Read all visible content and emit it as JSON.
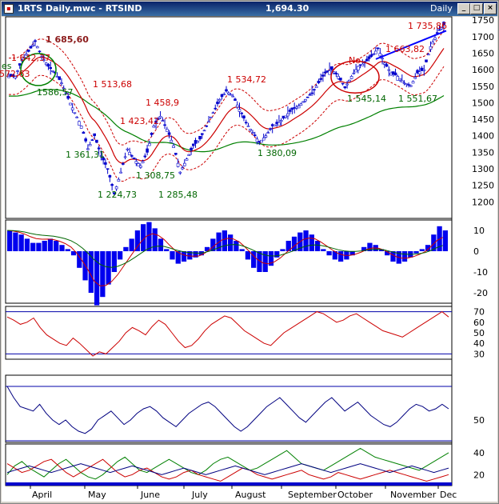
{
  "window": {
    "title": "1RTS Daily.mwc - RTSIND",
    "last_price": "1,694.30",
    "timeframe": "Daily",
    "buttons": [
      "minimize-button",
      "maximize-button",
      "close-button"
    ],
    "button_glyphs": [
      "_",
      "□",
      "×"
    ]
  },
  "colors": {
    "price_bars": "#0000cc",
    "ema_short": "#cc0000",
    "ema_long": "#008000",
    "envelope": "#cc0000",
    "histogram": "#0000ee",
    "trendline": "#0000ff",
    "circle_green": "#008000",
    "circle_red": "#cc0000",
    "text_red": "#cc0000",
    "text_green": "#006600"
  },
  "chart_data": [
    {
      "type": "candlestick",
      "name": "RTSIND",
      "ylim": [
        1150,
        1760
      ],
      "ytick_labels": [
        "1200",
        "1250",
        "1300",
        "1350",
        "1400",
        "1450",
        "1500",
        "1550",
        "1600",
        "1650",
        "1700",
        "1750"
      ],
      "x_labels": [
        "April",
        "May",
        "June",
        "July",
        "August",
        "September",
        "October",
        "November",
        "Dec"
      ],
      "close_series_estimate": [
        1580,
        1580,
        1630,
        1655,
        1685,
        1640,
        1610,
        1590,
        1560,
        1513,
        1470,
        1430,
        1361,
        1400,
        1340,
        1300,
        1224,
        1290,
        1360,
        1330,
        1309,
        1350,
        1430,
        1459,
        1420,
        1370,
        1290,
        1330,
        1370,
        1390,
        1430,
        1470,
        1510,
        1535,
        1520,
        1480,
        1440,
        1410,
        1380,
        1400,
        1430,
        1440,
        1460,
        1480,
        1490,
        1510,
        1530,
        1560,
        1590,
        1600,
        1580,
        1545,
        1580,
        1610,
        1620,
        1640,
        1664,
        1620,
        1590,
        1580,
        1560,
        1552,
        1590,
        1600,
        1670,
        1710,
        1736
      ],
      "annotations": [
        {
          "text": "1 685,60",
          "bold": true
        },
        {
          "text": "1 642,37"
        },
        {
          "text": "1572,63"
        },
        {
          "text": "1586,57"
        },
        {
          "text": "1 513,68"
        },
        {
          "text": "1 458,9"
        },
        {
          "text": "1 423,42"
        },
        {
          "text": "1 361,31"
        },
        {
          "text": "1 308,75"
        },
        {
          "text": "1 224,73"
        },
        {
          "text": "1 285,48"
        },
        {
          "text": "1 534,72"
        },
        {
          "text": "1 380,09"
        },
        {
          "text": "No"
        },
        {
          "text": "1 545,14"
        },
        {
          "text": "1 663,82"
        },
        {
          "text": "1 551,67"
        },
        {
          "text": "1 735,86"
        },
        {
          "text": "es"
        }
      ]
    },
    {
      "type": "bar",
      "name": "histogram",
      "ylim": [
        -25,
        15
      ],
      "ytick_labels": [
        "10",
        "0",
        "-10",
        "-20"
      ],
      "values": [
        10,
        9,
        8,
        6,
        4,
        4,
        5,
        6,
        5,
        3,
        1,
        -2,
        -8,
        -14,
        -20,
        -26,
        -22,
        -16,
        -10,
        -4,
        2,
        6,
        10,
        13,
        14,
        11,
        6,
        1,
        -4,
        -6,
        -5,
        -4,
        -3,
        -2,
        2,
        6,
        9,
        10,
        8,
        5,
        1,
        -4,
        -8,
        -10,
        -10,
        -7,
        -3,
        1,
        5,
        7,
        9,
        10,
        8,
        5,
        1,
        -2,
        -4,
        -5,
        -4,
        -2,
        0,
        2,
        4,
        3,
        1,
        -2,
        -5,
        -6,
        -5,
        -3,
        -1,
        1,
        3,
        8,
        12,
        10
      ]
    },
    {
      "type": "line",
      "name": "oscillator-1",
      "ylim": [
        25,
        75
      ],
      "ytick_labels": [
        "70",
        "60",
        "50",
        "40",
        "30"
      ],
      "reference_lines": [
        70,
        30
      ],
      "values": [
        65,
        62,
        58,
        60,
        64,
        55,
        48,
        44,
        40,
        38,
        45,
        40,
        34,
        28,
        32,
        30,
        36,
        42,
        50,
        55,
        52,
        48,
        56,
        62,
        58,
        50,
        42,
        36,
        38,
        44,
        52,
        58,
        62,
        66,
        64,
        58,
        52,
        48,
        44,
        40,
        38,
        44,
        50,
        54,
        58,
        62,
        66,
        70,
        68,
        64,
        60,
        62,
        66,
        68,
        64,
        60,
        56,
        52,
        50,
        48,
        46,
        50,
        54,
        58,
        62,
        66,
        70,
        65
      ]
    },
    {
      "type": "line",
      "name": "oscillator-2",
      "ytick_labels": [
        "50"
      ],
      "values": [
        80,
        70,
        62,
        60,
        58,
        64,
        56,
        50,
        46,
        50,
        44,
        40,
        38,
        42,
        50,
        54,
        58,
        52,
        46,
        50,
        56,
        60,
        62,
        58,
        52,
        48,
        44,
        50,
        56,
        60,
        64,
        66,
        62,
        56,
        50,
        44,
        40,
        44,
        50,
        56,
        62,
        66,
        70,
        64,
        58,
        52,
        48,
        54,
        60,
        66,
        70,
        64,
        58,
        62,
        66,
        60,
        54,
        50,
        46,
        44,
        48,
        54,
        60,
        64,
        62,
        58,
        60,
        64,
        60
      ]
    },
    {
      "type": "line",
      "name": "directional-index",
      "ytick_labels": [
        "40",
        "20"
      ],
      "series": [
        {
          "color": "#008000",
          "values": [
            20,
            28,
            32,
            26,
            22,
            18,
            24,
            30,
            34,
            28,
            22,
            18,
            16,
            20,
            26,
            32,
            36,
            30,
            24,
            22,
            26,
            30,
            34,
            30,
            26,
            22,
            20,
            24,
            30,
            34,
            36,
            32,
            28,
            24,
            26,
            30,
            34,
            38,
            42,
            36,
            30,
            28,
            26,
            24,
            28,
            32,
            36,
            40,
            44,
            40,
            36,
            34,
            32,
            30,
            28,
            26,
            24,
            28,
            32,
            36,
            40
          ]
        },
        {
          "color": "#cc0000",
          "values": [
            30,
            26,
            22,
            24,
            28,
            32,
            34,
            28,
            22,
            18,
            22,
            26,
            30,
            34,
            28,
            22,
            18,
            20,
            24,
            26,
            22,
            18,
            16,
            18,
            22,
            24,
            20,
            18,
            16,
            14,
            18,
            22,
            26,
            24,
            20,
            18,
            16,
            18,
            20,
            22,
            24,
            20,
            18,
            16,
            18,
            22,
            20,
            18,
            16,
            18,
            20,
            22,
            24,
            22,
            20,
            18,
            16,
            14,
            16,
            18,
            20
          ]
        },
        {
          "color": "#000080",
          "values": [
            22,
            24,
            26,
            28,
            26,
            24,
            22,
            24,
            26,
            28,
            30,
            28,
            26,
            24,
            22,
            24,
            26,
            28,
            26,
            24,
            22,
            20,
            22,
            24,
            26,
            24,
            22,
            20,
            22,
            24,
            26,
            28,
            26,
            24,
            22,
            20,
            22,
            24,
            26,
            28,
            30,
            28,
            26,
            24,
            22,
            24,
            26,
            28,
            30,
            28,
            26,
            24,
            22,
            24,
            26,
            28,
            26,
            24,
            22,
            24,
            26
          ]
        }
      ]
    }
  ]
}
